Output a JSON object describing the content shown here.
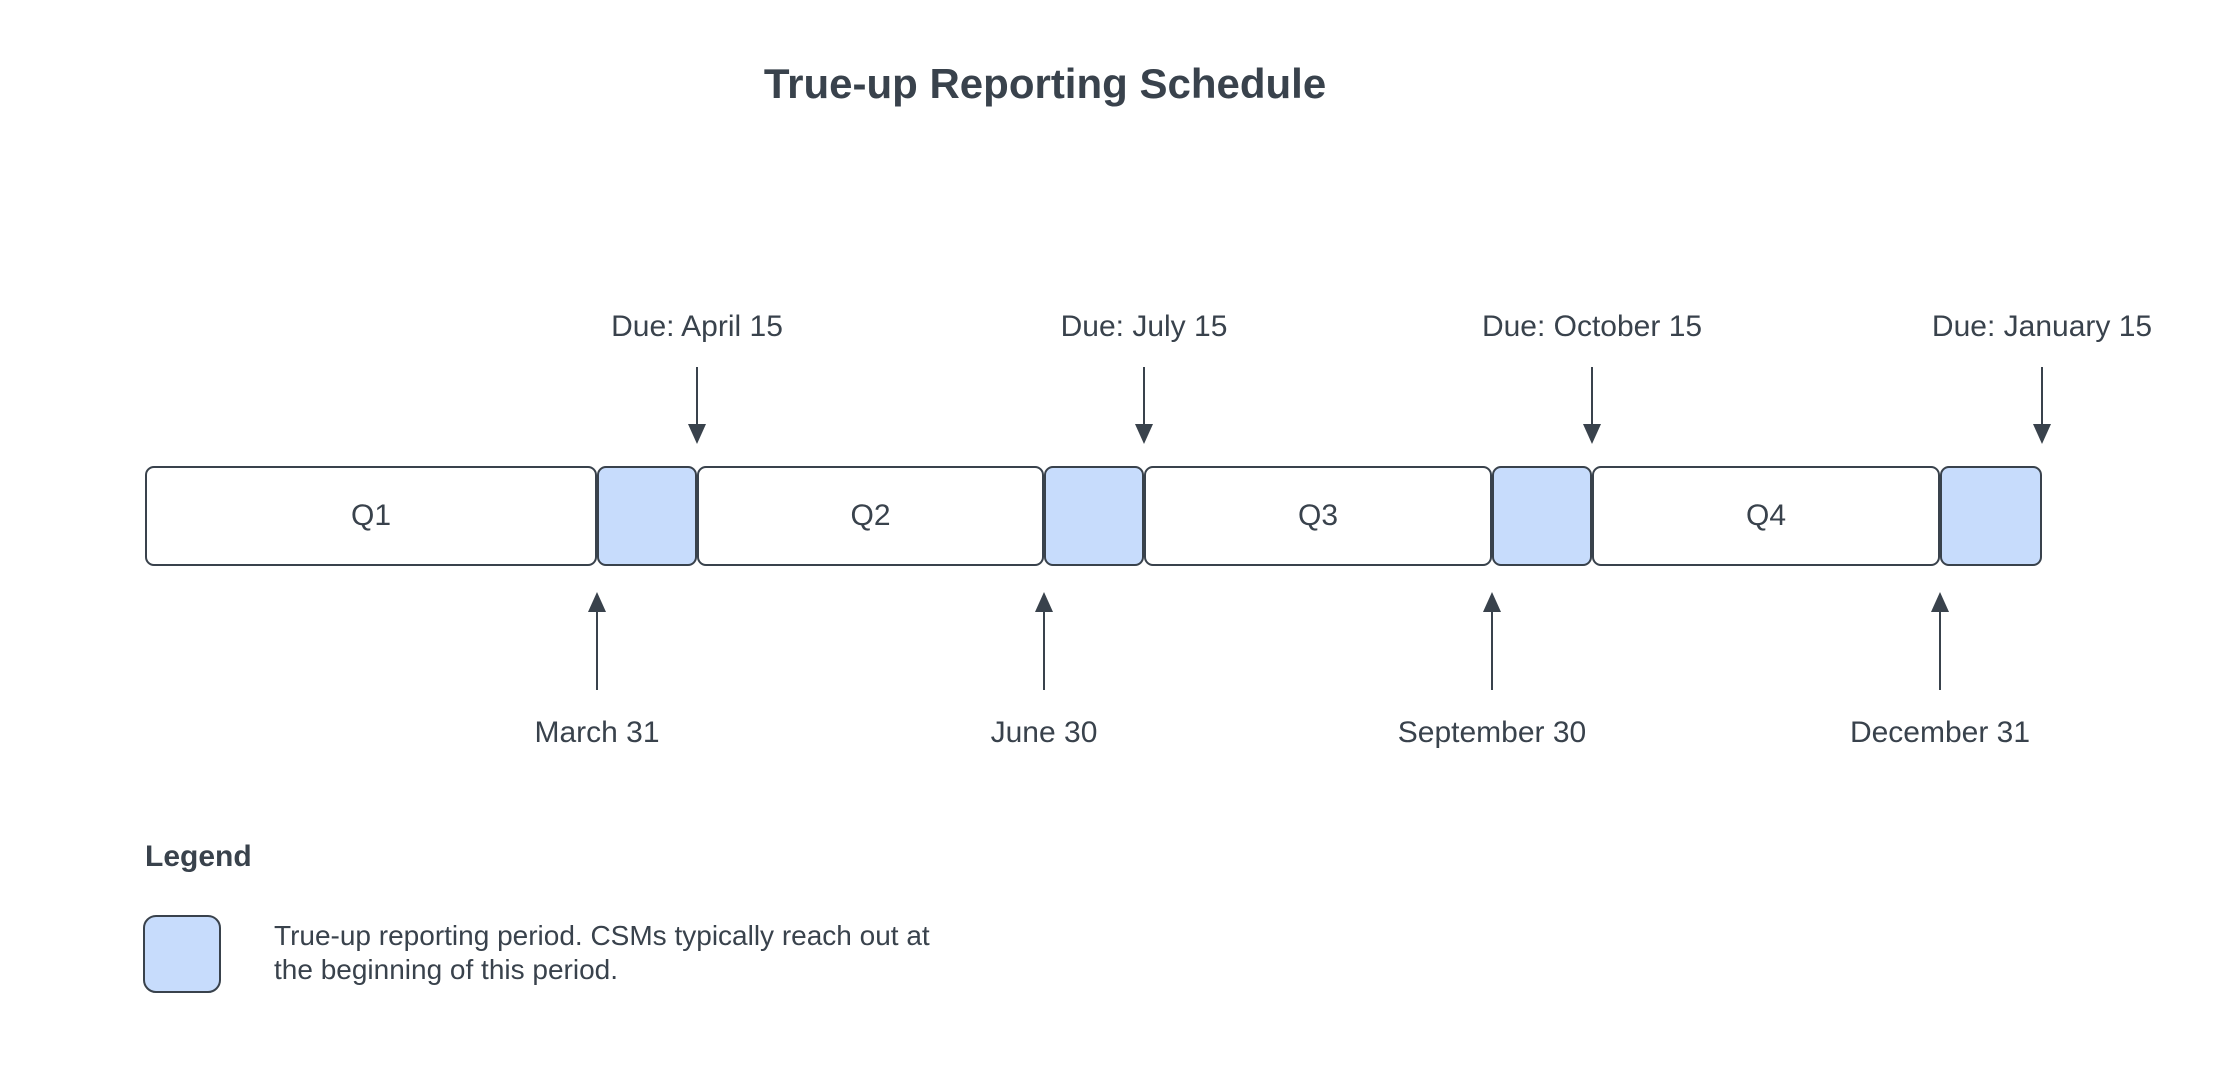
{
  "title": "True-up Reporting Schedule",
  "timeline": {
    "quarters": [
      {
        "label": "Q1"
      },
      {
        "label": "Q2"
      },
      {
        "label": "Q3"
      },
      {
        "label": "Q4"
      }
    ],
    "due_annotations": [
      {
        "label": "Due: April 15"
      },
      {
        "label": "Due: July 15"
      },
      {
        "label": "Due: October 15"
      },
      {
        "label": "Due: January 15"
      }
    ],
    "quarter_end_annotations": [
      {
        "label": "March 31"
      },
      {
        "label": "June 30"
      },
      {
        "label": "September 30"
      },
      {
        "label": "December 31"
      }
    ]
  },
  "legend": {
    "heading": "Legend",
    "description": "True-up reporting period. CSMs typically reach out at\nthe beginning of this period."
  },
  "colors": {
    "period_fill": "#c7dcfc",
    "ink": "#39424c",
    "background": "#ffffff"
  }
}
